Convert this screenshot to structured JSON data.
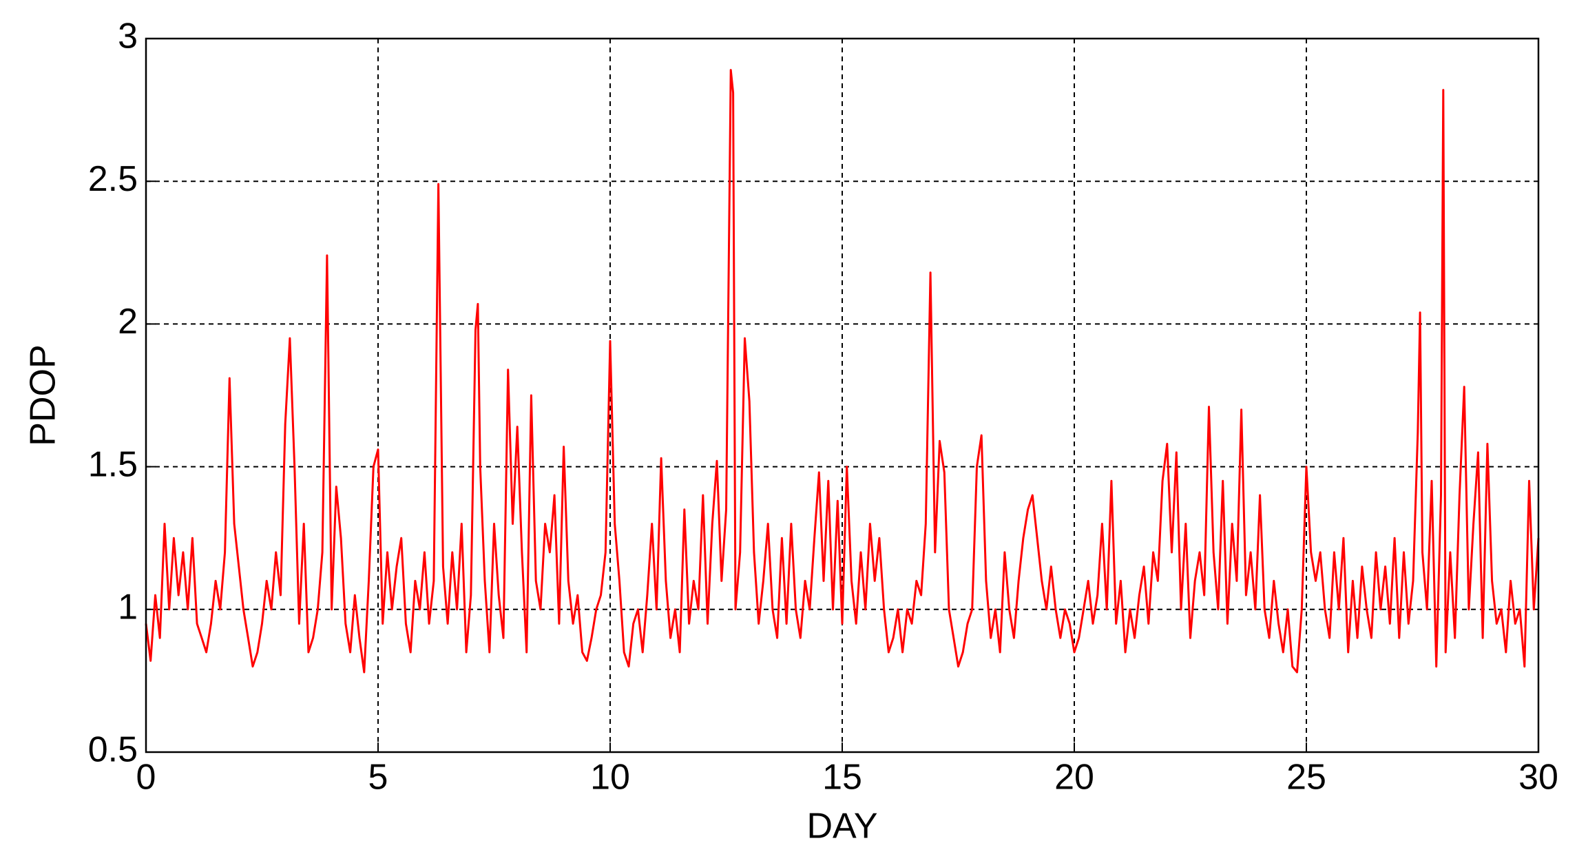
{
  "chart_data": {
    "type": "line",
    "x_label": "DAY",
    "y_label": "PDOP",
    "color": "#ff0000",
    "grid": true,
    "xlim": [
      0,
      30
    ],
    "ylim": [
      0.5,
      3
    ],
    "xticks": [
      0,
      5,
      10,
      15,
      20,
      25,
      30
    ],
    "yticks": [
      0.5,
      1,
      1.5,
      2,
      2.5,
      3
    ],
    "x": [
      0,
      0.1,
      0.2,
      0.3,
      0.4,
      0.5,
      0.6,
      0.7,
      0.8,
      0.9,
      1,
      1.1,
      1.2,
      1.3,
      1.4,
      1.5,
      1.6,
      1.7,
      1.8,
      1.9,
      2,
      2.1,
      2.2,
      2.3,
      2.4,
      2.5,
      2.6,
      2.7,
      2.8,
      2.9,
      3,
      3.1,
      3.2,
      3.3,
      3.4,
      3.5,
      3.6,
      3.7,
      3.8,
      3.9,
      4,
      4.1,
      4.2,
      4.3,
      4.4,
      4.5,
      4.6,
      4.7,
      4.8,
      4.9,
      5,
      5.1,
      5.2,
      5.3,
      5.4,
      5.5,
      5.6,
      5.7,
      5.8,
      5.9,
      6,
      6.1,
      6.2,
      6.3,
      6.4,
      6.5,
      6.6,
      6.7,
      6.8,
      6.9,
      7,
      7.1,
      7.15,
      7.2,
      7.3,
      7.4,
      7.5,
      7.6,
      7.7,
      7.8,
      7.9,
      8,
      8.1,
      8.2,
      8.3,
      8.4,
      8.5,
      8.6,
      8.7,
      8.8,
      8.9,
      9,
      9.1,
      9.2,
      9.3,
      9.4,
      9.5,
      9.6,
      9.7,
      9.8,
      9.9,
      10,
      10.1,
      10.2,
      10.3,
      10.4,
      10.5,
      10.6,
      10.7,
      10.8,
      10.9,
      11,
      11.1,
      11.2,
      11.3,
      11.4,
      11.5,
      11.6,
      11.7,
      11.8,
      11.9,
      12,
      12.1,
      12.2,
      12.3,
      12.4,
      12.5,
      12.6,
      12.65,
      12.7,
      12.8,
      12.9,
      13,
      13.1,
      13.2,
      13.3,
      13.4,
      13.5,
      13.6,
      13.7,
      13.8,
      13.9,
      14,
      14.1,
      14.2,
      14.3,
      14.4,
      14.5,
      14.6,
      14.7,
      14.8,
      14.9,
      15,
      15.1,
      15.2,
      15.3,
      15.4,
      15.5,
      15.6,
      15.7,
      15.8,
      15.9,
      16,
      16.1,
      16.2,
      16.3,
      16.4,
      16.5,
      16.6,
      16.7,
      16.8,
      16.9,
      17,
      17.1,
      17.2,
      17.3,
      17.4,
      17.5,
      17.6,
      17.7,
      17.8,
      17.9,
      18,
      18.1,
      18.2,
      18.3,
      18.4,
      18.5,
      18.6,
      18.7,
      18.8,
      18.9,
      19,
      19.1,
      19.2,
      19.3,
      19.4,
      19.5,
      19.6,
      19.7,
      19.8,
      19.9,
      20,
      20.1,
      20.2,
      20.3,
      20.4,
      20.5,
      20.6,
      20.7,
      20.8,
      20.9,
      21,
      21.1,
      21.2,
      21.3,
      21.4,
      21.5,
      21.6,
      21.7,
      21.8,
      21.9,
      22,
      22.1,
      22.2,
      22.3,
      22.4,
      22.5,
      22.6,
      22.7,
      22.8,
      22.9,
      23,
      23.1,
      23.2,
      23.3,
      23.4,
      23.5,
      23.6,
      23.7,
      23.8,
      23.9,
      24,
      24.1,
      24.2,
      24.3,
      24.4,
      24.5,
      24.6,
      24.7,
      24.8,
      24.9,
      25,
      25.1,
      25.2,
      25.3,
      25.4,
      25.5,
      25.6,
      25.7,
      25.8,
      25.9,
      26,
      26.1,
      26.2,
      26.3,
      26.4,
      26.5,
      26.6,
      26.7,
      26.8,
      26.9,
      27,
      27.1,
      27.2,
      27.3,
      27.4,
      27.45,
      27.5,
      27.6,
      27.7,
      27.8,
      27.9,
      27.95,
      28,
      28.1,
      28.2,
      28.3,
      28.4,
      28.5,
      28.6,
      28.7,
      28.8,
      28.9,
      29,
      29.1,
      29.2,
      29.3,
      29.4,
      29.5,
      29.6,
      29.7,
      29.8,
      29.9,
      30
    ],
    "values": [
      0.95,
      0.82,
      1.05,
      0.9,
      1.3,
      1.0,
      1.25,
      1.05,
      1.2,
      1.0,
      1.25,
      0.95,
      0.9,
      0.85,
      0.95,
      1.1,
      1.0,
      1.2,
      1.81,
      1.3,
      1.15,
      1.0,
      0.9,
      0.8,
      0.85,
      0.95,
      1.1,
      1.0,
      1.2,
      1.05,
      1.65,
      1.95,
      1.5,
      0.95,
      1.3,
      0.85,
      0.9,
      1.0,
      1.2,
      2.24,
      1.0,
      1.43,
      1.25,
      0.95,
      0.85,
      1.05,
      0.9,
      0.78,
      1.1,
      1.5,
      1.56,
      0.95,
      1.2,
      1.0,
      1.15,
      1.25,
      0.95,
      0.85,
      1.1,
      1.0,
      1.2,
      0.95,
      1.1,
      2.49,
      1.15,
      0.95,
      1.2,
      1.0,
      1.3,
      0.85,
      1.05,
      1.98,
      2.07,
      1.5,
      1.1,
      0.85,
      1.3,
      1.05,
      0.9,
      1.84,
      1.3,
      1.64,
      1.2,
      0.85,
      1.75,
      1.1,
      1.0,
      1.3,
      1.2,
      1.4,
      0.95,
      1.57,
      1.1,
      0.95,
      1.05,
      0.85,
      0.82,
      0.9,
      1.0,
      1.05,
      1.2,
      1.94,
      1.3,
      1.1,
      0.85,
      0.8,
      0.95,
      1.0,
      0.85,
      1.05,
      1.3,
      1.0,
      1.53,
      1.1,
      0.9,
      1.0,
      0.85,
      1.35,
      0.95,
      1.1,
      1.0,
      1.4,
      0.95,
      1.3,
      1.52,
      1.1,
      1.35,
      2.89,
      2.81,
      1.0,
      1.2,
      1.95,
      1.73,
      1.2,
      0.95,
      1.1,
      1.3,
      1.0,
      0.9,
      1.25,
      0.95,
      1.3,
      1.0,
      0.9,
      1.1,
      1.0,
      1.25,
      1.48,
      1.1,
      1.45,
      1.0,
      1.38,
      0.95,
      1.5,
      1.1,
      0.95,
      1.2,
      1.0,
      1.3,
      1.1,
      1.25,
      1.0,
      0.85,
      0.9,
      1.0,
      0.85,
      1.0,
      0.95,
      1.1,
      1.05,
      1.3,
      2.18,
      1.2,
      1.59,
      1.48,
      1.0,
      0.9,
      0.8,
      0.85,
      0.95,
      1.0,
      1.5,
      1.61,
      1.1,
      0.9,
      1.0,
      0.85,
      1.2,
      1.0,
      0.9,
      1.1,
      1.25,
      1.35,
      1.4,
      1.25,
      1.1,
      1.0,
      1.15,
      1.0,
      0.9,
      1.0,
      0.95,
      0.85,
      0.9,
      1.0,
      1.1,
      0.95,
      1.05,
      1.3,
      1.0,
      1.45,
      0.95,
      1.1,
      0.85,
      1.0,
      0.9,
      1.05,
      1.15,
      0.95,
      1.2,
      1.1,
      1.45,
      1.58,
      1.2,
      1.55,
      1.0,
      1.3,
      0.9,
      1.1,
      1.2,
      1.05,
      1.71,
      1.2,
      1.0,
      1.45,
      0.95,
      1.3,
      1.1,
      1.7,
      1.05,
      1.2,
      1.0,
      1.4,
      1.0,
      0.9,
      1.1,
      0.95,
      0.85,
      1.0,
      0.8,
      0.78,
      1.0,
      1.5,
      1.2,
      1.1,
      1.2,
      1.0,
      0.9,
      1.2,
      1.0,
      1.25,
      0.85,
      1.1,
      0.9,
      1.15,
      1.0,
      0.9,
      1.2,
      1.0,
      1.15,
      0.95,
      1.25,
      0.9,
      1.2,
      0.95,
      1.1,
      1.62,
      2.04,
      1.2,
      1.0,
      1.45,
      0.8,
      1.4,
      2.82,
      0.85,
      1.2,
      0.9,
      1.4,
      1.78,
      1.0,
      1.3,
      1.55,
      0.9,
      1.58,
      1.1,
      0.95,
      1.0,
      0.85,
      1.1,
      0.95,
      1.0,
      0.8,
      1.45,
      1.0,
      1.25
    ]
  }
}
